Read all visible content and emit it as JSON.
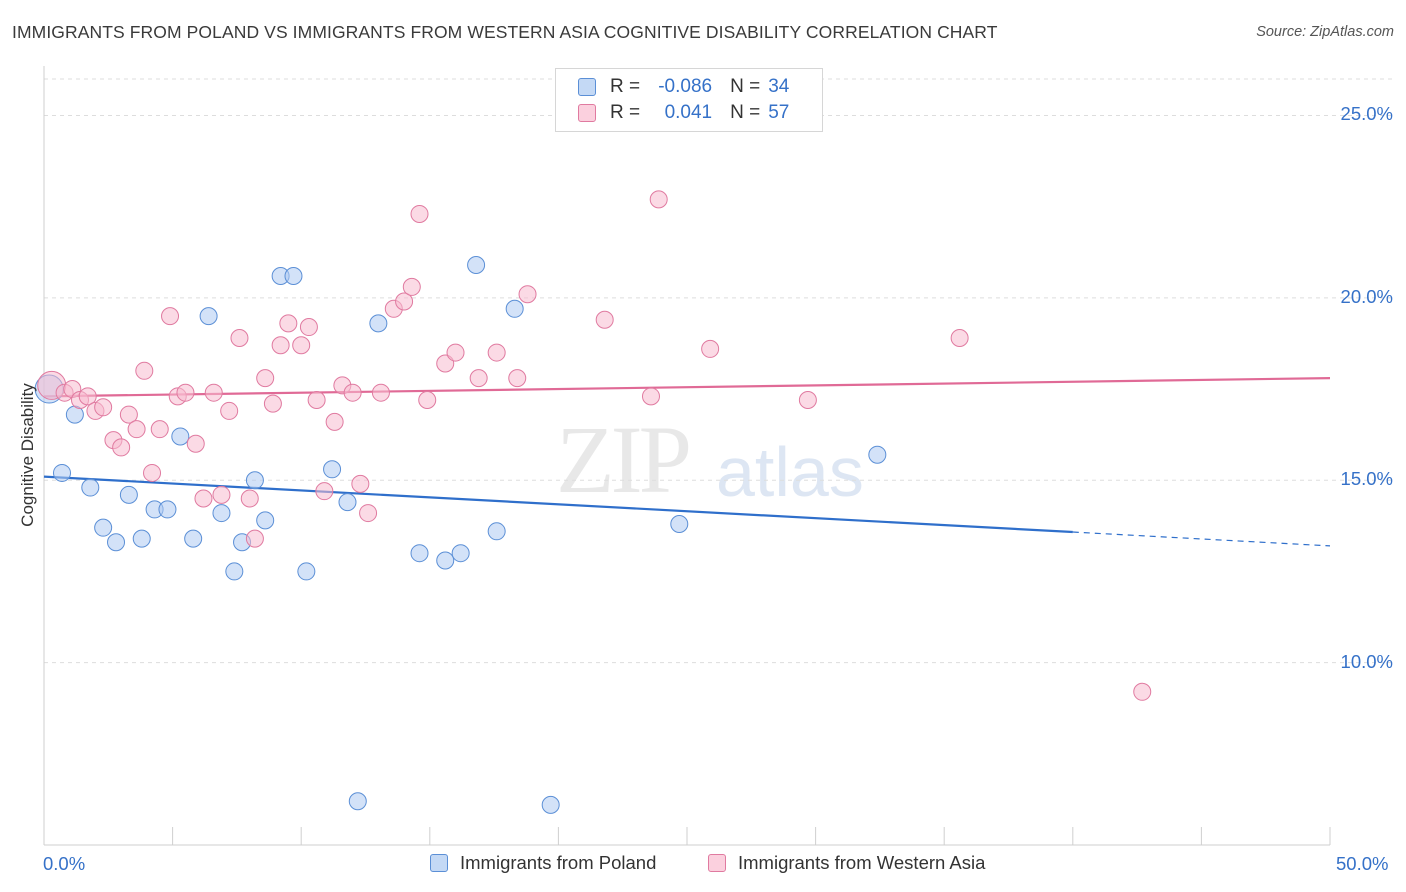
{
  "title": "IMMIGRANTS FROM POLAND VS IMMIGRANTS FROM WESTERN ASIA COGNITIVE DISABILITY CORRELATION CHART",
  "source": "Source: ZipAtlas.com",
  "watermark": {
    "zip": "ZIP",
    "atlas": "atlas"
  },
  "colors": {
    "poland": "#5b8fd6",
    "poland_fill": "#aecbf2",
    "poland_line": "#2f6fcb",
    "wasia": "#e07aa0",
    "wasia_fill": "#f7bcd0",
    "wasia_line": "#e06a96",
    "axis_text": "#3571c8",
    "grid": "#dddddd"
  },
  "legend": {
    "rows": [
      {
        "r_label": "R =",
        "r_value": "-0.086",
        "n_label": "N =",
        "n_value": "34"
      },
      {
        "r_label": "R =",
        "r_value": "0.041",
        "n_label": "N =",
        "n_value": "57"
      }
    ]
  },
  "bottom_legend": [
    "Immigrants from Poland",
    "Immigrants from Western Asia"
  ],
  "chart_data": {
    "type": "scatter",
    "title": "IMMIGRANTS FROM POLAND VS IMMIGRANTS FROM WESTERN ASIA COGNITIVE DISABILITY CORRELATION CHART",
    "xlabel": "",
    "ylabel": "Cognitive Disability",
    "xlim": [
      0,
      50
    ],
    "ylim": [
      5,
      26
    ],
    "x_tick_labels": [
      "0.0%",
      "50.0%"
    ],
    "y_ticks": [
      10,
      15,
      20,
      25
    ],
    "y_tick_labels": [
      "10.0%",
      "15.0%",
      "20.0%",
      "25.0%"
    ],
    "grid": true,
    "legend_placement": "top-center",
    "series": [
      {
        "name": "Immigrants from Poland",
        "r": -0.086,
        "n": 34,
        "trend": {
          "x_start": 0,
          "y_start": 15.1,
          "x_solid_end": 40,
          "x_end": 50,
          "y_end": 13.2
        },
        "points": [
          [
            0.2,
            17.5
          ],
          [
            1.2,
            16.8
          ],
          [
            0.7,
            15.2
          ],
          [
            1.8,
            14.8
          ],
          [
            2.3,
            13.7
          ],
          [
            2.8,
            13.3
          ],
          [
            3.3,
            14.6
          ],
          [
            3.8,
            13.4
          ],
          [
            4.3,
            14.2
          ],
          [
            4.8,
            14.2
          ],
          [
            5.3,
            16.2
          ],
          [
            5.8,
            13.4
          ],
          [
            6.4,
            19.5
          ],
          [
            6.9,
            14.1
          ],
          [
            7.4,
            12.5
          ],
          [
            7.7,
            13.3
          ],
          [
            8.2,
            15.0
          ],
          [
            8.6,
            13.9
          ],
          [
            9.2,
            20.6
          ],
          [
            9.7,
            20.6
          ],
          [
            10.2,
            12.5
          ],
          [
            11.2,
            15.3
          ],
          [
            11.8,
            14.4
          ],
          [
            12.2,
            6.2
          ],
          [
            13.0,
            19.3
          ],
          [
            14.6,
            13.0
          ],
          [
            15.6,
            12.8
          ],
          [
            16.2,
            13.0
          ],
          [
            16.8,
            20.9
          ],
          [
            17.6,
            13.6
          ],
          [
            18.3,
            19.7
          ],
          [
            19.7,
            6.1
          ],
          [
            24.7,
            13.8
          ],
          [
            32.4,
            15.7
          ]
        ]
      },
      {
        "name": "Immigrants from Western Asia",
        "r": 0.041,
        "n": 57,
        "trend": {
          "x_start": 0,
          "y_start": 17.3,
          "x_solid_end": 50,
          "x_end": 50,
          "y_end": 17.8
        },
        "points": [
          [
            0.3,
            17.6
          ],
          [
            0.8,
            17.4
          ],
          [
            1.1,
            17.5
          ],
          [
            1.4,
            17.2
          ],
          [
            1.7,
            17.3
          ],
          [
            2.0,
            16.9
          ],
          [
            2.3,
            17.0
          ],
          [
            2.7,
            16.1
          ],
          [
            3.0,
            15.9
          ],
          [
            3.3,
            16.8
          ],
          [
            3.6,
            16.4
          ],
          [
            3.9,
            18.0
          ],
          [
            4.2,
            15.2
          ],
          [
            4.5,
            16.4
          ],
          [
            4.9,
            19.5
          ],
          [
            5.2,
            17.3
          ],
          [
            5.5,
            17.4
          ],
          [
            5.9,
            16.0
          ],
          [
            6.2,
            14.5
          ],
          [
            6.6,
            17.4
          ],
          [
            6.9,
            14.6
          ],
          [
            7.2,
            16.9
          ],
          [
            7.6,
            18.9
          ],
          [
            8.0,
            14.5
          ],
          [
            8.2,
            13.4
          ],
          [
            8.6,
            17.8
          ],
          [
            8.9,
            17.1
          ],
          [
            9.2,
            18.7
          ],
          [
            9.5,
            19.3
          ],
          [
            10.0,
            18.7
          ],
          [
            10.3,
            19.2
          ],
          [
            10.6,
            17.2
          ],
          [
            10.9,
            14.7
          ],
          [
            11.3,
            16.6
          ],
          [
            11.6,
            17.6
          ],
          [
            12.0,
            17.4
          ],
          [
            12.3,
            14.9
          ],
          [
            12.6,
            14.1
          ],
          [
            13.1,
            17.4
          ],
          [
            13.6,
            19.7
          ],
          [
            14.0,
            19.9
          ],
          [
            14.3,
            20.3
          ],
          [
            14.6,
            22.3
          ],
          [
            14.9,
            17.2
          ],
          [
            15.6,
            18.2
          ],
          [
            16.0,
            18.5
          ],
          [
            16.9,
            17.8
          ],
          [
            17.6,
            18.5
          ],
          [
            18.4,
            17.8
          ],
          [
            18.8,
            20.1
          ],
          [
            21.8,
            19.4
          ],
          [
            23.6,
            17.3
          ],
          [
            23.9,
            22.7
          ],
          [
            25.9,
            18.6
          ],
          [
            29.7,
            17.2
          ],
          [
            35.6,
            18.9
          ],
          [
            42.7,
            9.2
          ]
        ]
      }
    ]
  }
}
